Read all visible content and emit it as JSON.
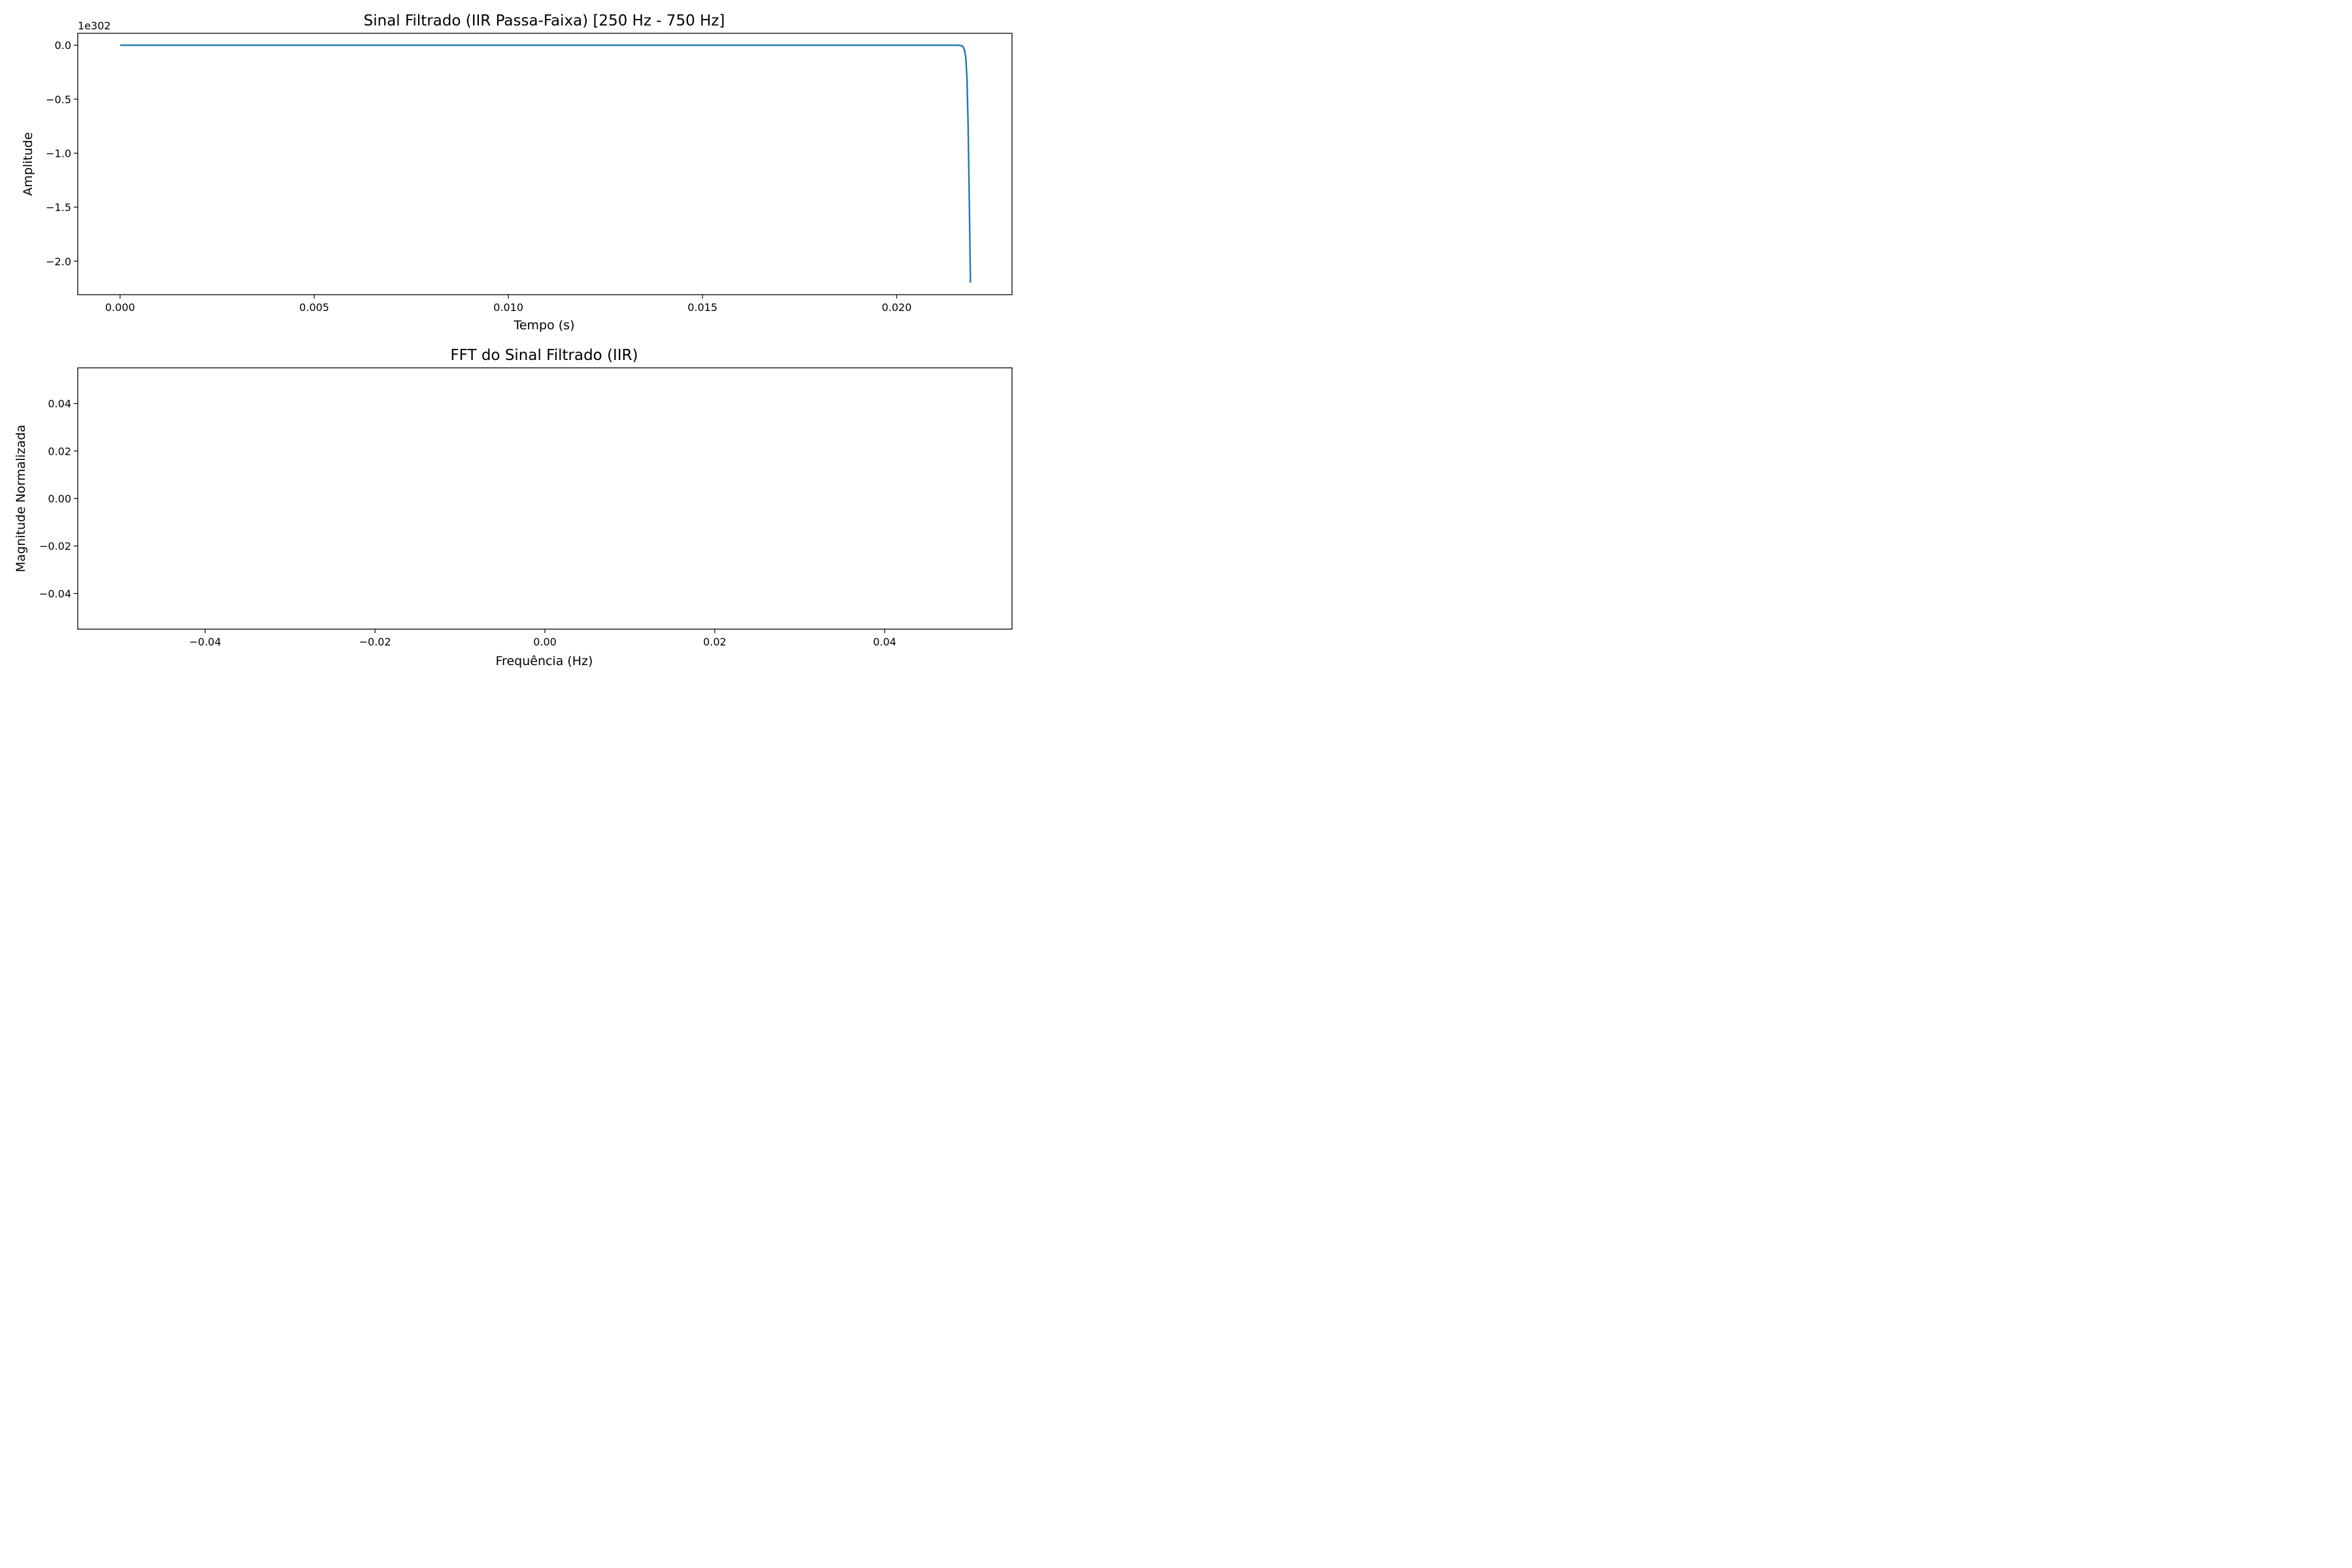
{
  "chart_data": [
    {
      "type": "line",
      "title": "Sinal Filtrado (IIR Passa-Faixa) [250 Hz - 750 Hz]",
      "xlabel": "Tempo (s)",
      "ylabel": "Amplitude",
      "y_offset_label": "1e302",
      "xlim": [
        -0.00109,
        0.02297
      ],
      "ylim": [
        -2.31,
        0.11
      ],
      "xticks": [
        0.0,
        0.005,
        0.01,
        0.015,
        0.02
      ],
      "xtick_labels": [
        "0.000",
        "0.005",
        "0.010",
        "0.015",
        "0.020"
      ],
      "yticks": [
        0.0,
        -0.5,
        -1.0,
        -1.5,
        -2.0
      ],
      "ytick_labels": [
        "0.0",
        "−0.5",
        "−1.0",
        "−1.5",
        "−2.0"
      ],
      "grid": false,
      "series_color": "#1f77b4",
      "series": [
        {
          "x": [
            0.0,
            0.005,
            0.01,
            0.015,
            0.02,
            0.0215,
            0.0216,
            0.02168,
            0.02172,
            0.02175,
            0.02178,
            0.02181,
            0.02184,
            0.02187,
            0.0219
          ],
          "y": [
            0.0,
            0.0,
            0.0,
            0.0,
            0.0,
            0.0,
            -0.0005,
            -0.005,
            -0.02,
            -0.05,
            -0.12,
            -0.3,
            -0.75,
            -1.45,
            -2.2
          ]
        }
      ]
    },
    {
      "type": "line",
      "title": "FFT do Sinal Filtrado (IIR)",
      "xlabel": "Frequência (Hz)",
      "ylabel": "Magnitude Normalizada",
      "xlim": [
        -0.055,
        0.055
      ],
      "ylim": [
        -0.055,
        0.055
      ],
      "xticks": [
        -0.04,
        -0.02,
        0.0,
        0.02,
        0.04
      ],
      "xtick_labels": [
        "−0.04",
        "−0.02",
        "0.00",
        "0.02",
        "0.04"
      ],
      "yticks": [
        0.04,
        0.02,
        0.0,
        -0.02,
        -0.04
      ],
      "ytick_labels": [
        "0.04",
        "0.02",
        "0.00",
        "−0.02",
        "−0.04"
      ],
      "grid": false,
      "series": []
    }
  ]
}
